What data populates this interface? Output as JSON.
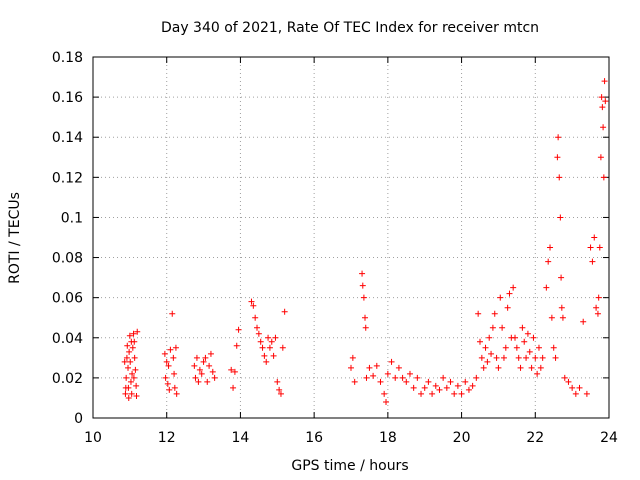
{
  "chart_data": {
    "type": "scatter",
    "title": "Day 340 of 2021, Rate Of TEC Index for receiver mtcn",
    "xlabel": "GPS time / hours",
    "ylabel": "ROTI / TECUs",
    "xlim": [
      10,
      24
    ],
    "ylim": [
      0,
      0.18
    ],
    "x_ticks": [
      10,
      12,
      14,
      16,
      18,
      20,
      22,
      24
    ],
    "x_tick_labels": [
      "10",
      "12",
      "14",
      "16",
      "18",
      "20",
      "22",
      "24"
    ],
    "y_ticks": [
      0,
      0.02,
      0.04,
      0.06,
      0.08,
      0.1,
      0.12,
      0.14,
      0.16,
      0.18
    ],
    "y_tick_labels": [
      "0",
      "0.02",
      "0.04",
      "0.06",
      "0.08",
      "0.1",
      "0.12",
      "0.14",
      "0.16",
      "0.18"
    ],
    "grid": true,
    "marker": "+",
    "colors": {
      "points": "#ff0000",
      "grid": "#a0a0a0",
      "axes": "#000000"
    },
    "series": [
      {
        "points": [
          [
            10.88,
            0.012
          ],
          [
            10.9,
            0.02
          ],
          [
            10.92,
            0.03
          ],
          [
            10.93,
            0.036
          ],
          [
            10.95,
            0.025
          ],
          [
            10.96,
            0.015
          ],
          [
            10.98,
            0.033
          ],
          [
            11.0,
            0.041
          ],
          [
            11.01,
            0.028
          ],
          [
            11.03,
            0.018
          ],
          [
            11.05,
            0.012
          ],
          [
            11.06,
            0.022
          ],
          [
            11.08,
            0.035
          ],
          [
            11.1,
            0.042
          ],
          [
            11.12,
            0.038
          ],
          [
            11.13,
            0.03
          ],
          [
            11.15,
            0.024
          ],
          [
            11.17,
            0.016
          ],
          [
            11.18,
            0.011
          ],
          [
            11.2,
            0.043
          ],
          [
            10.86,
            0.028
          ],
          [
            10.89,
            0.015
          ],
          [
            10.97,
            0.01
          ],
          [
            11.04,
            0.038
          ],
          [
            11.11,
            0.02
          ],
          [
            11.95,
            0.032
          ],
          [
            11.97,
            0.02
          ],
          [
            12.0,
            0.028
          ],
          [
            12.03,
            0.017
          ],
          [
            12.05,
            0.026
          ],
          [
            12.07,
            0.014
          ],
          [
            12.1,
            0.034
          ],
          [
            12.15,
            0.052
          ],
          [
            12.18,
            0.03
          ],
          [
            12.2,
            0.022
          ],
          [
            12.22,
            0.015
          ],
          [
            12.25,
            0.035
          ],
          [
            12.27,
            0.012
          ],
          [
            12.75,
            0.026
          ],
          [
            12.78,
            0.02
          ],
          [
            12.82,
            0.03
          ],
          [
            12.86,
            0.018
          ],
          [
            12.9,
            0.024
          ],
          [
            12.95,
            0.022
          ],
          [
            13.0,
            0.028
          ],
          [
            13.05,
            0.03
          ],
          [
            13.1,
            0.018
          ],
          [
            13.15,
            0.026
          ],
          [
            13.2,
            0.032
          ],
          [
            13.25,
            0.023
          ],
          [
            13.3,
            0.02
          ],
          [
            13.75,
            0.024
          ],
          [
            13.8,
            0.015
          ],
          [
            13.85,
            0.023
          ],
          [
            13.9,
            0.036
          ],
          [
            13.95,
            0.044
          ],
          [
            14.3,
            0.058
          ],
          [
            14.35,
            0.056
          ],
          [
            14.4,
            0.05
          ],
          [
            14.45,
            0.045
          ],
          [
            14.5,
            0.042
          ],
          [
            14.55,
            0.038
          ],
          [
            14.6,
            0.035
          ],
          [
            14.65,
            0.031
          ],
          [
            14.7,
            0.028
          ],
          [
            14.75,
            0.04
          ],
          [
            14.8,
            0.035
          ],
          [
            14.85,
            0.038
          ],
          [
            14.9,
            0.031
          ],
          [
            14.95,
            0.04
          ],
          [
            15.0,
            0.018
          ],
          [
            15.05,
            0.014
          ],
          [
            15.1,
            0.012
          ],
          [
            15.15,
            0.035
          ],
          [
            15.2,
            0.053
          ],
          [
            17.0,
            0.025
          ],
          [
            17.05,
            0.03
          ],
          [
            17.1,
            0.018
          ],
          [
            17.3,
            0.072
          ],
          [
            17.32,
            0.066
          ],
          [
            17.35,
            0.06
          ],
          [
            17.38,
            0.05
          ],
          [
            17.4,
            0.045
          ],
          [
            17.42,
            0.02
          ],
          [
            17.5,
            0.025
          ],
          [
            17.6,
            0.021
          ],
          [
            17.7,
            0.026
          ],
          [
            17.8,
            0.018
          ],
          [
            17.9,
            0.012
          ],
          [
            17.95,
            0.008
          ],
          [
            18.0,
            0.022
          ],
          [
            18.1,
            0.028
          ],
          [
            18.2,
            0.02
          ],
          [
            18.3,
            0.025
          ],
          [
            18.4,
            0.02
          ],
          [
            18.5,
            0.018
          ],
          [
            18.6,
            0.022
          ],
          [
            18.7,
            0.015
          ],
          [
            18.8,
            0.02
          ],
          [
            18.9,
            0.012
          ],
          [
            19.0,
            0.015
          ],
          [
            19.1,
            0.018
          ],
          [
            19.2,
            0.012
          ],
          [
            19.3,
            0.016
          ],
          [
            19.4,
            0.014
          ],
          [
            19.5,
            0.02
          ],
          [
            19.6,
            0.015
          ],
          [
            19.7,
            0.018
          ],
          [
            19.8,
            0.012
          ],
          [
            19.9,
            0.016
          ],
          [
            20.0,
            0.012
          ],
          [
            20.1,
            0.018
          ],
          [
            20.2,
            0.014
          ],
          [
            20.3,
            0.016
          ],
          [
            20.4,
            0.02
          ],
          [
            20.45,
            0.052
          ],
          [
            20.5,
            0.038
          ],
          [
            20.55,
            0.03
          ],
          [
            20.6,
            0.025
          ],
          [
            20.65,
            0.035
          ],
          [
            20.7,
            0.028
          ],
          [
            20.75,
            0.04
          ],
          [
            20.8,
            0.032
          ],
          [
            20.85,
            0.045
          ],
          [
            20.9,
            0.052
          ],
          [
            20.95,
            0.03
          ],
          [
            21.0,
            0.025
          ],
          [
            21.05,
            0.06
          ],
          [
            21.1,
            0.045
          ],
          [
            21.15,
            0.03
          ],
          [
            21.2,
            0.035
          ],
          [
            21.25,
            0.055
          ],
          [
            21.3,
            0.062
          ],
          [
            21.35,
            0.04
          ],
          [
            21.4,
            0.065
          ],
          [
            21.45,
            0.04
          ],
          [
            21.5,
            0.035
          ],
          [
            21.55,
            0.03
          ],
          [
            21.6,
            0.025
          ],
          [
            21.65,
            0.045
          ],
          [
            21.7,
            0.038
          ],
          [
            21.75,
            0.03
          ],
          [
            21.8,
            0.042
          ],
          [
            21.85,
            0.033
          ],
          [
            21.9,
            0.025
          ],
          [
            21.95,
            0.04
          ],
          [
            22.0,
            0.03
          ],
          [
            22.05,
            0.022
          ],
          [
            22.1,
            0.035
          ],
          [
            22.15,
            0.025
          ],
          [
            22.2,
            0.03
          ],
          [
            22.3,
            0.065
          ],
          [
            22.35,
            0.078
          ],
          [
            22.4,
            0.085
          ],
          [
            22.45,
            0.05
          ],
          [
            22.5,
            0.035
          ],
          [
            22.55,
            0.03
          ],
          [
            22.6,
            0.13
          ],
          [
            22.62,
            0.14
          ],
          [
            22.65,
            0.12
          ],
          [
            22.68,
            0.1
          ],
          [
            22.7,
            0.07
          ],
          [
            22.72,
            0.055
          ],
          [
            22.75,
            0.05
          ],
          [
            22.8,
            0.02
          ],
          [
            22.9,
            0.018
          ],
          [
            23.0,
            0.015
          ],
          [
            23.1,
            0.012
          ],
          [
            23.2,
            0.015
          ],
          [
            23.3,
            0.048
          ],
          [
            23.4,
            0.012
          ],
          [
            23.5,
            0.085
          ],
          [
            23.55,
            0.078
          ],
          [
            23.6,
            0.09
          ],
          [
            23.65,
            0.055
          ],
          [
            23.7,
            0.052
          ],
          [
            23.72,
            0.06
          ],
          [
            23.75,
            0.085
          ],
          [
            23.78,
            0.13
          ],
          [
            23.8,
            0.16
          ],
          [
            23.82,
            0.155
          ],
          [
            23.84,
            0.145
          ],
          [
            23.86,
            0.12
          ],
          [
            23.88,
            0.168
          ],
          [
            23.9,
            0.158
          ]
        ]
      }
    ]
  }
}
